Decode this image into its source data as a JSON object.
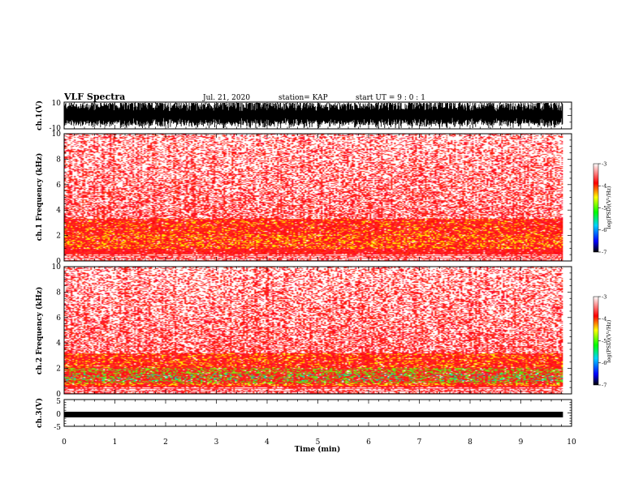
{
  "header": {
    "title": "VLF Spectra",
    "date": "Jul. 21, 2020",
    "station": "station= KAP",
    "start": "start  UT =   9 : 0  : 1"
  },
  "chart_data": [
    {
      "type": "line",
      "name": "waveform-ch1",
      "ylabel": "ch.1(V)",
      "xlim": [
        0,
        10
      ],
      "ylim": [
        -10,
        10
      ],
      "yticks": [
        "10",
        "-10"
      ],
      "data_extent_min": 9.83
    },
    {
      "type": "heatmap",
      "name": "spectrogram-ch1",
      "ylabel": "ch.1 Frequency (kHz)",
      "xlim": [
        0,
        10
      ],
      "ylim": [
        0,
        10
      ],
      "yticks": [
        "0",
        "2",
        "4",
        "6",
        "8",
        "10"
      ],
      "intense_band_khz": [
        0.9,
        3.3
      ],
      "colorbar": {
        "label": "log(PSD)(V²/Hz)",
        "range": [
          -7,
          -3
        ],
        "ticks": [
          "-3",
          "-4",
          "-5",
          "-6",
          "-7"
        ]
      }
    },
    {
      "type": "heatmap",
      "name": "spectrogram-ch2",
      "ylabel": "ch.2 Frequency (kHz)",
      "xlim": [
        0,
        10
      ],
      "ylim": [
        0,
        10
      ],
      "yticks": [
        "0",
        "2",
        "4",
        "6",
        "8",
        "10"
      ],
      "intense_band_khz": [
        0.6,
        3.2
      ],
      "colorbar": {
        "label": "log(PSD)(V²/Hz)",
        "range": [
          -7,
          -3
        ],
        "ticks": [
          "-3",
          "-4",
          "-5",
          "-6",
          "-7"
        ]
      }
    },
    {
      "type": "line",
      "name": "waveform-ch3",
      "ylabel": "ch.3(V)",
      "xlim": [
        0,
        10
      ],
      "ylim": [
        -5,
        5
      ],
      "yticks": [
        "5",
        "0",
        "-5"
      ],
      "xlabel": "Time (min)",
      "xticks": [
        "0",
        "1",
        "2",
        "3",
        "4",
        "5",
        "6",
        "7",
        "8",
        "9",
        "10"
      ]
    }
  ]
}
